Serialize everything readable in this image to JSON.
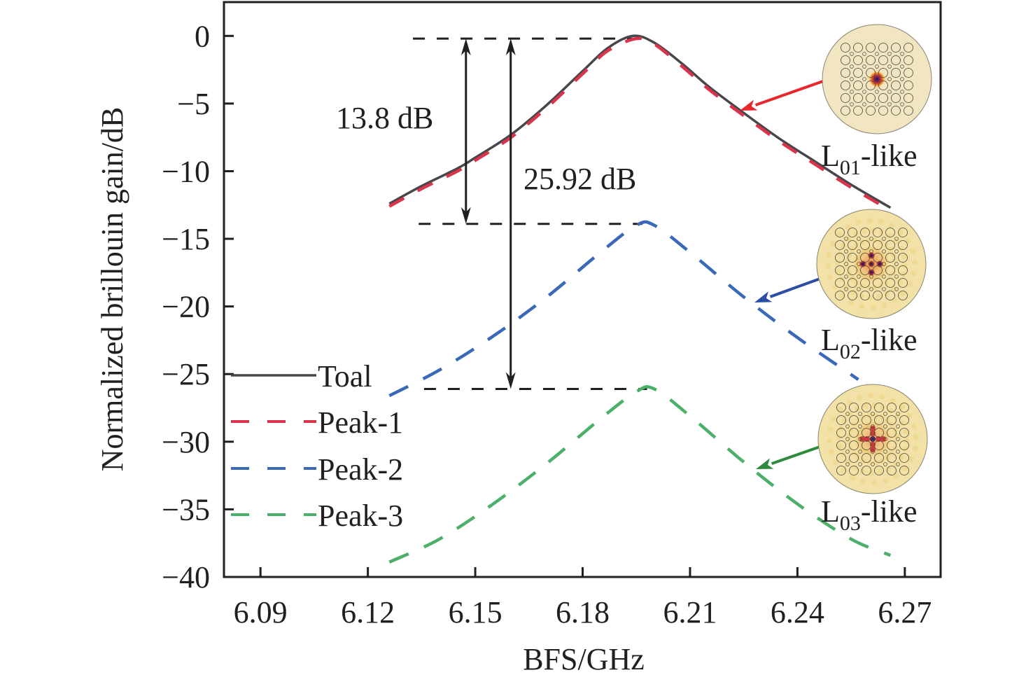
{
  "chart_data": {
    "type": "line",
    "title": "",
    "xlabel": "BFS/GHz",
    "ylabel": "Normalized brillouin gain/dB",
    "xlim": [
      6.0798,
      6.28
    ],
    "ylim": [
      -40,
      2.5
    ],
    "xticks": [
      6.09,
      6.12,
      6.15,
      6.18,
      6.21,
      6.24,
      6.27
    ],
    "xtick_labels": [
      "6.09",
      "6.12",
      "6.15",
      "6.18",
      "6.21",
      "6.24",
      "6.27"
    ],
    "yticks": [
      0,
      -5,
      -10,
      -15,
      -20,
      -25,
      -30,
      -35,
      -40
    ],
    "ytick_labels": [
      "0",
      "−5",
      "−10",
      "−15",
      "−20",
      "−25",
      "−30",
      "−35",
      "−40"
    ],
    "grid": false,
    "legend_position": "bottom-left",
    "series": [
      {
        "name": "Toal",
        "color": "#45474c",
        "style": "solid",
        "x": [
          6.126,
          6.135,
          6.145,
          6.15,
          6.16,
          6.17,
          6.18,
          6.187,
          6.194,
          6.2,
          6.208,
          6.215,
          6.224,
          6.235,
          6.245,
          6.255,
          6.266
        ],
        "y": [
          -12.4,
          -11.1,
          -9.8,
          -9.0,
          -7.3,
          -5.1,
          -2.6,
          -0.9,
          0.0,
          -0.5,
          -2.1,
          -3.7,
          -5.5,
          -7.6,
          -9.3,
          -11.0,
          -12.7
        ]
      },
      {
        "name": "Peak-1",
        "color": "#d9344a",
        "style": "dashed",
        "x": [
          6.126,
          6.135,
          6.145,
          6.15,
          6.16,
          6.17,
          6.18,
          6.187,
          6.195,
          6.2,
          6.208,
          6.215,
          6.224,
          6.235,
          6.245,
          6.255,
          6.266
        ],
        "y": [
          -12.6,
          -11.3,
          -10.0,
          -9.2,
          -7.5,
          -5.3,
          -2.8,
          -1.1,
          -0.2,
          -0.6,
          -2.3,
          -3.9,
          -5.7,
          -7.8,
          -9.5,
          -11.2,
          -12.9
        ]
      },
      {
        "name": "Peak-2",
        "color": "#3a69b8",
        "style": "dashed",
        "x": [
          6.126,
          6.14,
          6.155,
          6.17,
          6.185,
          6.195,
          6.2,
          6.21,
          6.225,
          6.24,
          6.257
        ],
        "y": [
          -26.6,
          -24.7,
          -22.2,
          -19.3,
          -16.0,
          -14.0,
          -14.0,
          -16.0,
          -19.3,
          -22.3,
          -25.4
        ]
      },
      {
        "name": "Peak-3",
        "color": "#4caf6a",
        "style": "dashed",
        "x": [
          6.126,
          6.14,
          6.155,
          6.17,
          6.185,
          6.195,
          6.2,
          6.21,
          6.225,
          6.24,
          6.255,
          6.266
        ],
        "y": [
          -38.9,
          -37.2,
          -34.6,
          -31.6,
          -28.3,
          -26.3,
          -26.1,
          -28.1,
          -31.5,
          -34.6,
          -37.2,
          -38.4
        ]
      }
    ],
    "reference_lines": [
      {
        "y": -0.2,
        "x_from": 6.1326,
        "x_to": 6.1945
      },
      {
        "y": -13.9,
        "x_from": 6.1342,
        "x_to": 6.1967
      },
      {
        "y": -26.1,
        "x_from": 6.1357,
        "x_to": 6.198
      }
    ],
    "annotations": [
      {
        "text": "13.8 dB",
        "arrow_x": 6.1474,
        "from_y": -0.2,
        "to_y": -13.9
      },
      {
        "text": "25.92 dB",
        "arrow_x": 6.1599,
        "from_y": -0.2,
        "to_y": -26.1
      }
    ],
    "insets": [
      {
        "label_main": "L",
        "label_sub": "01",
        "label_suffix": "-like",
        "mode": "L01",
        "arrow_color": "#e8262b",
        "target_series": "Peak-1"
      },
      {
        "label_main": "L",
        "label_sub": "02",
        "label_suffix": "-like",
        "mode": "L02",
        "arrow_color": "#2c4ea3",
        "target_series": "Peak-2"
      },
      {
        "label_main": "L",
        "label_sub": "03",
        "label_suffix": "-like",
        "mode": "L03",
        "arrow_color": "#2f8a3e",
        "target_series": "Peak-3"
      }
    ]
  }
}
